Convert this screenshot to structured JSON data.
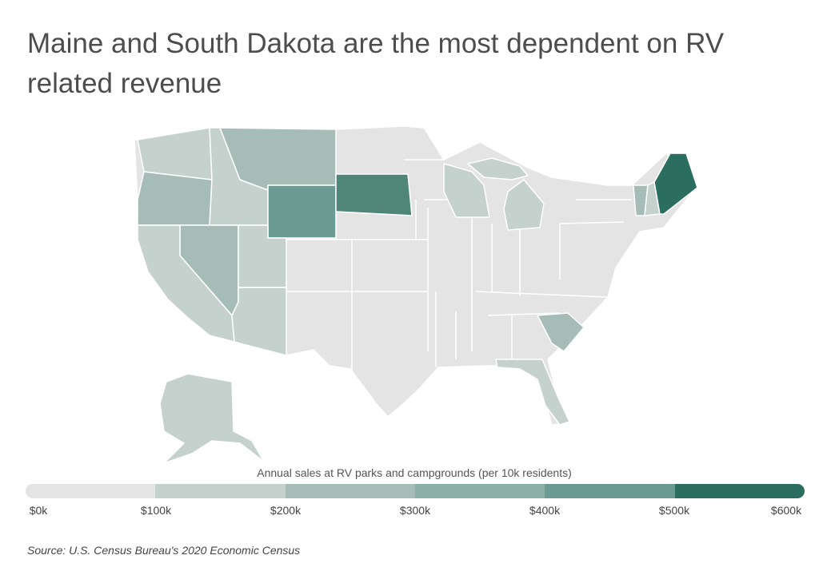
{
  "title": "Maine and South Dakota are the most dependent on RV related revenue",
  "legend": {
    "title": "Annual sales at RV parks and campgrounds (per 10k residents)",
    "ticks": [
      "$0k",
      "$100k",
      "$200k",
      "$300k",
      "$400k",
      "$500k",
      "$600k"
    ],
    "colors": [
      "#e4e4e4",
      "#c4d1cd",
      "#a6bdb7",
      "#8ab0a8",
      "#6a9a91",
      "#4f8678",
      "#2b6e60"
    ]
  },
  "source": "Source:  U.S. Census Bureau's 2020 Economic Census",
  "map_data": {
    "metric": "Annual sales at RV parks and campgrounds per 10k residents (color bin)",
    "highlighted_states": {
      "Maine": "$500k–$600k",
      "South Dakota": "$400k–$500k",
      "Wyoming": "$300k–$400k",
      "Oregon": "$200k–$300k",
      "Montana": "$200k–$300k",
      "Nevada": "$200k–$300k",
      "Vermont": "$200k–$300k",
      "South Carolina": "$200k–$300k",
      "Washington": "$100k–$200k",
      "Idaho": "$100k–$200k",
      "California": "$100k–$200k",
      "Utah": "$100k–$200k",
      "Arizona": "$100k–$200k",
      "Wisconsin": "$100k–$200k",
      "Michigan": "$100k–$200k",
      "New Hampshire": "$100k–$200k",
      "Florida": "$100k–$200k",
      "Alaska": "$100k–$200k"
    },
    "other_states": "$0k–$100k"
  }
}
